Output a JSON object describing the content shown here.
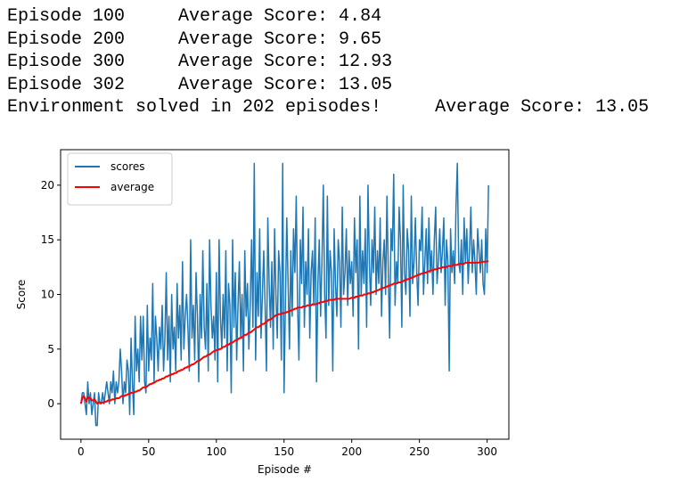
{
  "output_lines": [
    "Episode 100\tAverage Score: 4.84",
    "Episode 200\tAverage Score: 9.65",
    "Episode 300\tAverage Score: 12.93",
    "Episode 302\tAverage Score: 13.05",
    "Environment solved in 202 episodes!\tAverage Score: 13.05"
  ],
  "chart_data": {
    "type": "line",
    "xlabel": "Episode #",
    "ylabel": "Score",
    "xlim": [
      -15.05,
      316.05
    ],
    "ylim": [
      -3.25,
      23.25
    ],
    "xticks": [
      0,
      50,
      100,
      150,
      200,
      250,
      300
    ],
    "yticks": [
      0,
      5,
      10,
      15,
      20
    ],
    "legend": "upper left",
    "x": [
      0,
      1,
      2,
      3,
      4,
      5,
      6,
      7,
      8,
      9,
      10,
      11,
      12,
      13,
      14,
      15,
      16,
      17,
      18,
      19,
      20,
      21,
      22,
      23,
      24,
      25,
      26,
      27,
      28,
      29,
      30,
      31,
      32,
      33,
      34,
      35,
      36,
      37,
      38,
      39,
      40,
      41,
      42,
      43,
      44,
      45,
      46,
      47,
      48,
      49,
      50,
      51,
      52,
      53,
      54,
      55,
      56,
      57,
      58,
      59,
      60,
      61,
      62,
      63,
      64,
      65,
      66,
      67,
      68,
      69,
      70,
      71,
      72,
      73,
      74,
      75,
      76,
      77,
      78,
      79,
      80,
      81,
      82,
      83,
      84,
      85,
      86,
      87,
      88,
      89,
      90,
      91,
      92,
      93,
      94,
      95,
      96,
      97,
      98,
      99,
      100,
      101,
      102,
      103,
      104,
      105,
      106,
      107,
      108,
      109,
      110,
      111,
      112,
      113,
      114,
      115,
      116,
      117,
      118,
      119,
      120,
      121,
      122,
      123,
      124,
      125,
      126,
      127,
      128,
      129,
      130,
      131,
      132,
      133,
      134,
      135,
      136,
      137,
      138,
      139,
      140,
      141,
      142,
      143,
      144,
      145,
      146,
      147,
      148,
      149,
      150,
      151,
      152,
      153,
      154,
      155,
      156,
      157,
      158,
      159,
      160,
      161,
      162,
      163,
      164,
      165,
      166,
      167,
      168,
      169,
      170,
      171,
      172,
      173,
      174,
      175,
      176,
      177,
      178,
      179,
      180,
      181,
      182,
      183,
      184,
      185,
      186,
      187,
      188,
      189,
      190,
      191,
      192,
      193,
      194,
      195,
      196,
      197,
      198,
      199,
      200,
      201,
      202,
      203,
      204,
      205,
      206,
      207,
      208,
      209,
      210,
      211,
      212,
      213,
      214,
      215,
      216,
      217,
      218,
      219,
      220,
      221,
      222,
      223,
      224,
      225,
      226,
      227,
      228,
      229,
      230,
      231,
      232,
      233,
      234,
      235,
      236,
      237,
      238,
      239,
      240,
      241,
      242,
      243,
      244,
      245,
      246,
      247,
      248,
      249,
      250,
      251,
      252,
      253,
      254,
      255,
      256,
      257,
      258,
      259,
      260,
      261,
      262,
      263,
      264,
      265,
      266,
      267,
      268,
      269,
      270,
      271,
      272,
      273,
      274,
      275,
      276,
      277,
      278,
      279,
      280,
      281,
      282,
      283,
      284,
      285,
      286,
      287,
      288,
      289,
      290,
      291,
      292,
      293,
      294,
      295,
      296,
      297,
      298,
      299,
      300,
      301
    ],
    "series": [
      {
        "name": "scores",
        "color": "#1f77b4",
        "values": [
          0,
          1,
          1,
          0,
          -1,
          2,
          0,
          1,
          -1,
          0,
          1,
          -2,
          -2,
          1,
          0,
          0,
          1,
          0,
          1,
          2,
          1,
          0,
          2,
          1,
          3,
          0,
          2,
          1,
          2,
          5,
          3,
          0,
          2,
          1,
          4,
          3,
          -1,
          6,
          2,
          -1,
          8,
          3,
          5,
          2,
          8,
          4,
          8,
          2,
          1,
          9,
          3,
          6,
          4,
          11,
          2,
          8,
          6,
          3,
          7,
          5,
          9,
          3,
          6,
          12,
          4,
          8,
          2,
          10,
          5,
          7,
          3,
          11,
          6,
          9,
          4,
          13,
          5,
          8,
          10,
          7,
          3,
          15,
          6,
          9,
          4,
          12,
          8,
          2,
          10,
          6,
          14,
          7,
          5,
          11,
          3,
          15,
          9,
          6,
          8,
          4,
          12,
          2,
          15,
          8,
          5,
          10,
          6,
          14,
          3,
          11,
          9,
          1,
          15,
          7,
          12,
          4,
          9,
          13,
          6,
          10,
          3,
          14,
          8,
          11,
          5,
          9,
          15,
          7,
          22,
          4,
          12,
          8,
          16,
          6,
          10,
          14,
          9,
          3,
          17,
          11,
          7,
          13,
          5,
          16,
          10,
          6,
          14,
          12,
          4,
          22,
          1,
          9,
          17,
          11,
          5,
          14,
          8,
          16,
          12,
          19,
          9,
          4,
          15,
          11,
          18,
          7,
          13,
          10,
          16,
          6,
          12,
          14,
          9,
          17,
          2,
          11,
          15,
          8,
          13,
          20,
          10,
          6,
          19,
          9,
          14,
          12,
          3,
          16,
          11,
          8,
          15,
          13,
          7,
          18,
          10,
          12,
          16,
          9,
          14,
          11,
          13,
          8,
          17,
          12,
          15,
          5,
          19,
          10,
          14,
          11,
          16,
          7,
          20,
          13,
          9,
          15,
          12,
          18,
          10,
          14,
          11,
          17,
          8,
          13,
          15,
          10,
          19,
          12,
          6,
          16,
          14,
          21,
          9,
          13,
          11,
          18,
          15,
          7,
          20,
          12,
          10,
          16,
          14,
          8,
          19,
          11,
          13,
          17,
          12,
          9,
          15,
          14,
          18,
          10,
          13,
          16,
          11,
          17,
          12,
          14,
          10,
          15,
          18,
          11,
          13,
          16,
          12,
          14,
          17,
          9,
          15,
          13,
          3,
          16,
          12,
          14,
          11,
          18,
          22,
          13,
          12,
          15,
          10,
          17,
          13,
          16,
          11,
          14,
          18,
          12,
          15,
          13,
          10,
          16,
          14,
          12,
          15,
          11,
          10,
          16,
          12,
          20
        ]
      },
      {
        "name": "average",
        "color": "#ff0000",
        "values": [
          0.0,
          0.5,
          0.7,
          0.5,
          0.2,
          0.6,
          0.5,
          0.5,
          0.3,
          0.3,
          0.4,
          0.2,
          0.0,
          0.1,
          0.1,
          0.1,
          0.1,
          0.1,
          0.2,
          0.2,
          0.3,
          0.3,
          0.3,
          0.4,
          0.4,
          0.4,
          0.5,
          0.5,
          0.5,
          0.6,
          0.7,
          0.7,
          0.7,
          0.8,
          0.8,
          0.9,
          0.9,
          1.0,
          1.0,
          1.0,
          1.1,
          1.1,
          1.2,
          1.2,
          1.3,
          1.4,
          1.5,
          1.5,
          1.5,
          1.6,
          1.7,
          1.8,
          1.8,
          1.9,
          1.9,
          2.0,
          2.1,
          2.1,
          2.2,
          2.2,
          2.3,
          2.3,
          2.4,
          2.5,
          2.5,
          2.6,
          2.6,
          2.7,
          2.7,
          2.8,
          2.8,
          2.9,
          3.0,
          3.0,
          3.1,
          3.1,
          3.2,
          3.3,
          3.3,
          3.4,
          3.4,
          3.5,
          3.6,
          3.6,
          3.7,
          3.8,
          3.9,
          3.9,
          4.0,
          4.1,
          4.2,
          4.3,
          4.3,
          4.4,
          4.5,
          4.5,
          4.6,
          4.7,
          4.8,
          4.84,
          4.9,
          4.9,
          5.0,
          5.0,
          5.1,
          5.2,
          5.2,
          5.3,
          5.4,
          5.4,
          5.5,
          5.6,
          5.6,
          5.7,
          5.8,
          5.8,
          5.9,
          6.0,
          6.0,
          6.1,
          6.2,
          6.3,
          6.3,
          6.4,
          6.5,
          6.5,
          6.6,
          6.7,
          6.8,
          6.9,
          7.0,
          7.0,
          7.1,
          7.2,
          7.3,
          7.3,
          7.4,
          7.5,
          7.6,
          7.7,
          7.7,
          7.8,
          7.9,
          8.0,
          8.1,
          8.1,
          8.2,
          8.2,
          8.2,
          8.3,
          8.3,
          8.3,
          8.4,
          8.4,
          8.5,
          8.5,
          8.6,
          8.6,
          8.7,
          8.7,
          8.8,
          8.8,
          8.8,
          8.8,
          8.9,
          8.9,
          8.9,
          9.0,
          9.0,
          9.0,
          9.0,
          9.1,
          9.1,
          9.1,
          9.1,
          9.2,
          9.2,
          9.3,
          9.3,
          9.3,
          9.4,
          9.4,
          9.4,
          9.5,
          9.5,
          9.5,
          9.5,
          9.5,
          9.6,
          9.6,
          9.6,
          9.6,
          9.6,
          9.6,
          9.6,
          9.6,
          9.6,
          9.6,
          9.6,
          9.65,
          9.7,
          9.7,
          9.7,
          9.8,
          9.8,
          9.8,
          9.9,
          9.9,
          9.9,
          10.0,
          10.0,
          10.0,
          10.1,
          10.1,
          10.1,
          10.2,
          10.2,
          10.3,
          10.3,
          10.4,
          10.4,
          10.5,
          10.5,
          10.6,
          10.6,
          10.7,
          10.7,
          10.8,
          10.8,
          10.9,
          10.9,
          11.0,
          11.0,
          11.0,
          11.1,
          11.1,
          11.1,
          11.2,
          11.2,
          11.3,
          11.3,
          11.4,
          11.4,
          11.5,
          11.5,
          11.6,
          11.6,
          11.7,
          11.7,
          11.8,
          11.8,
          11.9,
          11.9,
          12.0,
          12.0,
          12.0,
          12.1,
          12.1,
          12.2,
          12.2,
          12.2,
          12.3,
          12.3,
          12.3,
          12.4,
          12.4,
          12.4,
          12.5,
          12.5,
          12.5,
          12.5,
          12.6,
          12.6,
          12.6,
          12.6,
          12.7,
          12.7,
          12.7,
          12.7,
          12.8,
          12.8,
          12.8,
          12.8,
          12.8,
          12.9,
          12.9,
          12.9,
          12.9,
          12.9,
          12.9,
          12.9,
          12.9,
          12.9,
          12.9,
          12.93,
          12.95,
          12.97,
          13.0,
          13.0,
          13.0,
          13.02,
          13.05
        ]
      }
    ]
  }
}
